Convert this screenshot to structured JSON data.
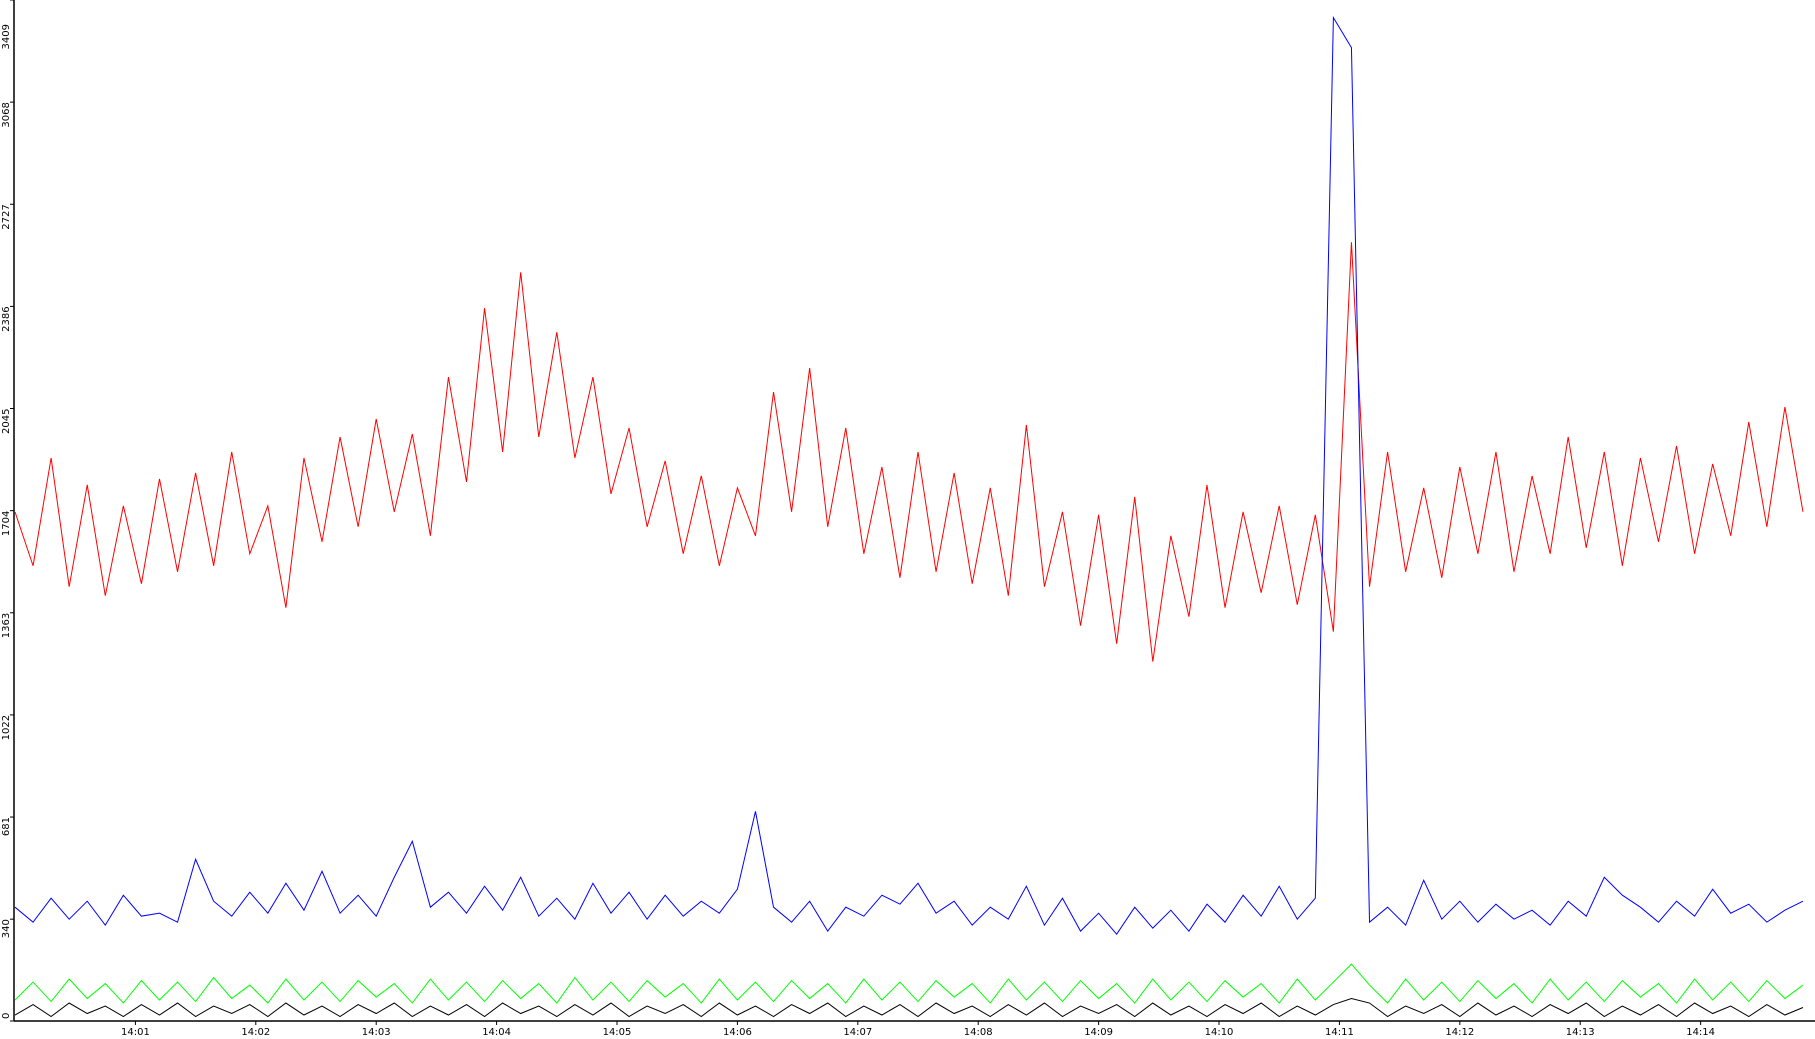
{
  "chart_data": {
    "type": "line",
    "x": [
      0,
      0.15,
      0.3,
      0.45,
      0.6,
      0.75,
      0.9,
      1.05,
      1.2,
      1.35,
      1.5,
      1.65,
      1.8,
      1.95,
      2.1,
      2.25,
      2.4,
      2.55,
      2.7,
      2.85,
      3,
      3.15,
      3.3,
      3.45,
      3.6,
      3.75,
      3.9,
      4.05,
      4.2,
      4.35,
      4.5,
      4.65,
      4.8,
      4.95,
      5.1,
      5.25,
      5.4,
      5.55,
      5.7,
      5.85,
      6,
      6.15,
      6.3,
      6.45,
      6.6,
      6.75,
      6.9,
      7.05,
      7.2,
      7.35,
      7.5,
      7.65,
      7.8,
      7.95,
      8.1,
      8.25,
      8.4,
      8.55,
      8.7,
      8.85,
      9,
      9.15,
      9.3,
      9.45,
      9.6,
      9.75,
      9.9,
      10.05,
      10.2,
      10.35,
      10.5,
      10.65,
      10.8,
      10.95,
      11.1,
      11.25,
      11.4,
      11.55,
      11.7,
      11.85,
      12,
      12.15,
      12.3,
      12.45,
      12.6,
      12.75,
      12.9,
      13.05,
      13.2,
      13.35,
      13.5,
      13.65,
      13.8,
      13.95,
      14.1,
      14.25,
      14.4,
      14.55,
      14.7,
      14.85
    ],
    "series": [
      {
        "color": "#ff0000",
        "values": [
          1700,
          1520,
          1880,
          1450,
          1790,
          1420,
          1720,
          1460,
          1810,
          1500,
          1830,
          1520,
          1900,
          1560,
          1720,
          1380,
          1880,
          1600,
          1950,
          1650,
          2010,
          1700,
          1960,
          1620,
          2150,
          1800,
          2380,
          1900,
          2500,
          1950,
          2300,
          1880,
          2150,
          1760,
          1980,
          1650,
          1870,
          1560,
          1820,
          1520,
          1780,
          1620,
          2100,
          1700,
          2180,
          1650,
          1980,
          1560,
          1850,
          1480,
          1900,
          1500,
          1830,
          1460,
          1780,
          1420,
          1990,
          1450,
          1700,
          1320,
          1690,
          1260,
          1750,
          1200,
          1620,
          1350,
          1790,
          1380,
          1700,
          1430,
          1720,
          1390,
          1690,
          1300,
          2600,
          1450,
          1900,
          1500,
          1780,
          1480,
          1850,
          1560,
          1900,
          1500,
          1820,
          1560,
          1950,
          1580,
          1900,
          1520,
          1880,
          1600,
          1920,
          1560,
          1860,
          1620,
          2000,
          1650,
          2050,
          1700
        ]
      },
      {
        "color": "#0000ff",
        "values": [
          380,
          330,
          410,
          340,
          400,
          320,
          420,
          350,
          360,
          330,
          540,
          400,
          350,
          430,
          360,
          460,
          370,
          500,
          360,
          420,
          350,
          480,
          600,
          380,
          430,
          360,
          450,
          370,
          480,
          350,
          410,
          340,
          460,
          360,
          430,
          340,
          420,
          350,
          400,
          360,
          440,
          700,
          380,
          330,
          400,
          300,
          380,
          350,
          420,
          390,
          460,
          360,
          400,
          320,
          380,
          340,
          450,
          320,
          410,
          300,
          360,
          290,
          380,
          310,
          370,
          300,
          390,
          330,
          420,
          350,
          450,
          340,
          410,
          3350,
          3250,
          330,
          380,
          320,
          470,
          340,
          400,
          330,
          390,
          340,
          370,
          320,
          400,
          350,
          480,
          420,
          380,
          330,
          400,
          350,
          440,
          360,
          390,
          330,
          370,
          400
        ]
      },
      {
        "color": "#00ff00",
        "values": [
          70,
          130,
          65,
          140,
          75,
          125,
          60,
          135,
          70,
          130,
          65,
          145,
          75,
          120,
          60,
          140,
          70,
          130,
          65,
          135,
          80,
          125,
          60,
          140,
          70,
          130,
          65,
          135,
          75,
          125,
          60,
          145,
          70,
          130,
          65,
          135,
          80,
          125,
          60,
          140,
          70,
          130,
          65,
          135,
          75,
          125,
          60,
          140,
          70,
          130,
          65,
          135,
          80,
          125,
          60,
          140,
          70,
          130,
          65,
          135,
          75,
          125,
          60,
          140,
          70,
          130,
          65,
          135,
          80,
          125,
          60,
          140,
          70,
          130,
          190,
          120,
          60,
          140,
          70,
          130,
          65,
          135,
          75,
          125,
          60,
          140,
          70,
          130,
          65,
          135,
          80,
          125,
          60,
          140,
          70,
          130,
          65,
          135,
          75,
          120
        ]
      },
      {
        "color": "#000000",
        "values": [
          20,
          55,
          15,
          60,
          25,
          50,
          15,
          55,
          20,
          60,
          15,
          50,
          25,
          55,
          15,
          60,
          20,
          50,
          15,
          55,
          25,
          60,
          15,
          50,
          20,
          55,
          15,
          60,
          25,
          50,
          15,
          55,
          20,
          60,
          15,
          50,
          25,
          55,
          15,
          60,
          20,
          50,
          15,
          55,
          25,
          60,
          15,
          50,
          20,
          55,
          15,
          60,
          25,
          50,
          15,
          55,
          20,
          60,
          15,
          50,
          25,
          55,
          15,
          60,
          20,
          50,
          15,
          55,
          25,
          60,
          15,
          50,
          20,
          55,
          75,
          60,
          15,
          50,
          25,
          55,
          15,
          60,
          20,
          50,
          15,
          55,
          25,
          60,
          15,
          50,
          20,
          55,
          15,
          60,
          25,
          50,
          15,
          55,
          20,
          45
        ]
      }
    ],
    "xlim": [
      0,
      14.95
    ],
    "xticks": [
      {
        "value": 1,
        "label": "14:01"
      },
      {
        "value": 2,
        "label": "14:02"
      },
      {
        "value": 3,
        "label": "14:03"
      },
      {
        "value": 4,
        "label": "14:04"
      },
      {
        "value": 5,
        "label": "14:05"
      },
      {
        "value": 6,
        "label": "14:06"
      },
      {
        "value": 7,
        "label": "14:07"
      },
      {
        "value": 8,
        "label": "14:08"
      },
      {
        "value": 9,
        "label": "14:09"
      },
      {
        "value": 10,
        "label": "14:10"
      },
      {
        "value": 11,
        "label": "14:11"
      },
      {
        "value": 12,
        "label": "14:12"
      },
      {
        "value": 13,
        "label": "14:13"
      },
      {
        "value": 14,
        "label": "14:14"
      }
    ],
    "ylim": [
      0,
      3409
    ],
    "yticks": [
      0,
      340,
      681,
      1022,
      1363,
      1704,
      2045,
      2386,
      2727,
      3068,
      3409
    ]
  }
}
